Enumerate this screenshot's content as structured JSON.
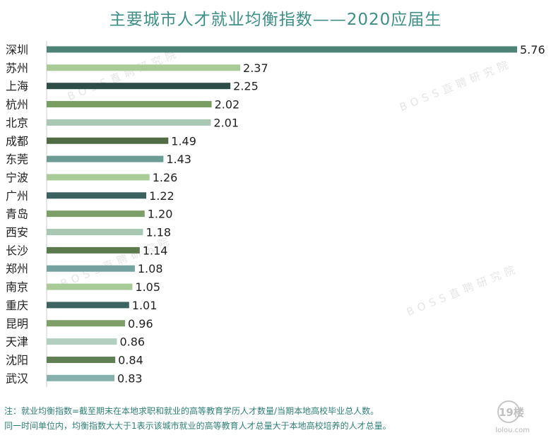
{
  "chart_data": {
    "type": "bar",
    "orientation": "horizontal",
    "title": "主要城市人才就业均衡指数——2020应届生",
    "categories": [
      "深圳",
      "苏州",
      "上海",
      "杭州",
      "北京",
      "成都",
      "东莞",
      "宁波",
      "广州",
      "青岛",
      "西安",
      "长沙",
      "郑州",
      "南京",
      "重庆",
      "昆明",
      "天津",
      "沈阳",
      "武汉"
    ],
    "values": [
      5.76,
      2.37,
      2.25,
      2.02,
      2.01,
      1.49,
      1.43,
      1.26,
      1.22,
      1.2,
      1.18,
      1.14,
      1.08,
      1.05,
      1.01,
      0.96,
      0.86,
      0.84,
      0.83
    ],
    "value_labels": [
      "5.76",
      "2.37",
      "2.25",
      "2.02",
      "2.01",
      "1.49",
      "1.43",
      "1.26",
      "1.22",
      "1.20",
      "1.18",
      "1.14",
      "1.08",
      "1.05",
      "1.01",
      "0.96",
      "0.86",
      "0.84",
      "0.83"
    ],
    "bar_colors": [
      "#4e8477",
      "#a9cb98",
      "#2e4d46",
      "#789e62",
      "#a8c8b4",
      "#4f6c45",
      "#6c9c94",
      "#a9cb98",
      "#3c6260",
      "#7c9e67",
      "#a8c8b4",
      "#5b7b4f",
      "#73a2a0",
      "#a9cb98",
      "#3e6461",
      "#7ea068",
      "#b2cfbf",
      "#5f7f54",
      "#86b0ac"
    ],
    "xlim": [
      0,
      5.76
    ],
    "grid": false,
    "legend": "none"
  },
  "notes": {
    "line1": "注：就业均衡指数=截至期末在本地求职和就业的高等教育学历人才数量/当期本地高校毕业总人数。",
    "line2": "同一时间单位内，均衡指数大大于1表示该城市就业的高等教育人才总量大于本地高校培养的人才总量。"
  },
  "watermark": "BOSS直聘研究院",
  "logo": {
    "text": "19楼",
    "subtext": "lolou.com"
  }
}
